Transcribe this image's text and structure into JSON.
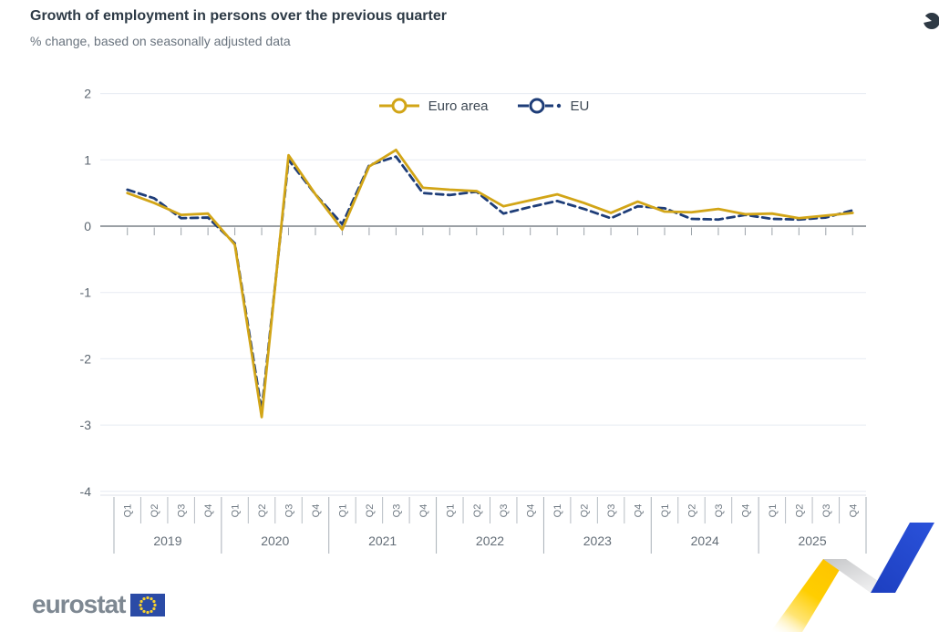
{
  "chart_data": {
    "type": "line",
    "title": "Growth of employment in persons over the previous quarter",
    "subtitle": "% change, based on seasonally adjusted data",
    "y_ticks": [
      "2",
      "1",
      "0",
      "-1",
      "-2",
      "-3",
      "-4"
    ],
    "ylim": [
      -4,
      2
    ],
    "grid": "horizontal",
    "legend_position": "top-center",
    "x_years": [
      {
        "label": "2019",
        "quarters": [
          "Q1",
          "Q2",
          "Q3",
          "Q4"
        ]
      },
      {
        "label": "2020",
        "quarters": [
          "Q1",
          "Q2",
          "Q3",
          "Q4"
        ]
      },
      {
        "label": "2021",
        "quarters": [
          "Q1",
          "Q2",
          "Q3",
          "Q4"
        ]
      },
      {
        "label": "2022",
        "quarters": [
          "Q1",
          "Q2",
          "Q3",
          "Q4"
        ]
      },
      {
        "label": "2023",
        "quarters": [
          "Q1",
          "Q2",
          "Q3",
          "Q4"
        ]
      },
      {
        "label": "2024",
        "quarters": [
          "Q1",
          "Q2",
          "Q3",
          "Q4"
        ]
      },
      {
        "label": "2025",
        "quarters": [
          "Q1",
          "Q2",
          "Q3",
          "Q4"
        ]
      }
    ],
    "series": [
      {
        "name": "Euro area",
        "color": "#d2a517",
        "line_style": "solid",
        "values": [
          0.5,
          0.35,
          0.17,
          0.19,
          -0.28,
          -2.88,
          1.07,
          0.48,
          -0.05,
          0.9,
          1.15,
          0.58,
          0.55,
          0.53,
          0.3,
          0.39,
          0.48,
          0.35,
          0.2,
          0.37,
          0.22,
          0.21,
          0.26,
          0.18,
          0.19,
          0.12,
          0.16,
          0.2
        ]
      },
      {
        "name": "EU",
        "color": "#1e3d78",
        "line_style": "dashed",
        "values": [
          0.55,
          0.42,
          0.12,
          0.13,
          -0.26,
          -2.78,
          1.0,
          0.48,
          0.03,
          0.92,
          1.05,
          0.5,
          0.47,
          0.52,
          0.19,
          0.29,
          0.38,
          0.26,
          0.12,
          0.3,
          0.27,
          0.11,
          0.1,
          0.17,
          0.11,
          0.1,
          0.13,
          0.24
        ]
      }
    ]
  },
  "footer": {
    "logo_text": "eurostat"
  },
  "icons": {
    "top_right": "partial-circle-icon",
    "eu_flag": "eu-flag",
    "bottom_right": "eurostat-ribbon"
  },
  "colors": {
    "title": "#2d3a46",
    "subtitle": "#69737e",
    "zero_line": "#7a8087",
    "gridline": "#e7ecf2",
    "ribbon_yellow": "#ffcf00",
    "ribbon_blue": "#2345cb",
    "flag_blue": "#2b4ba6"
  }
}
